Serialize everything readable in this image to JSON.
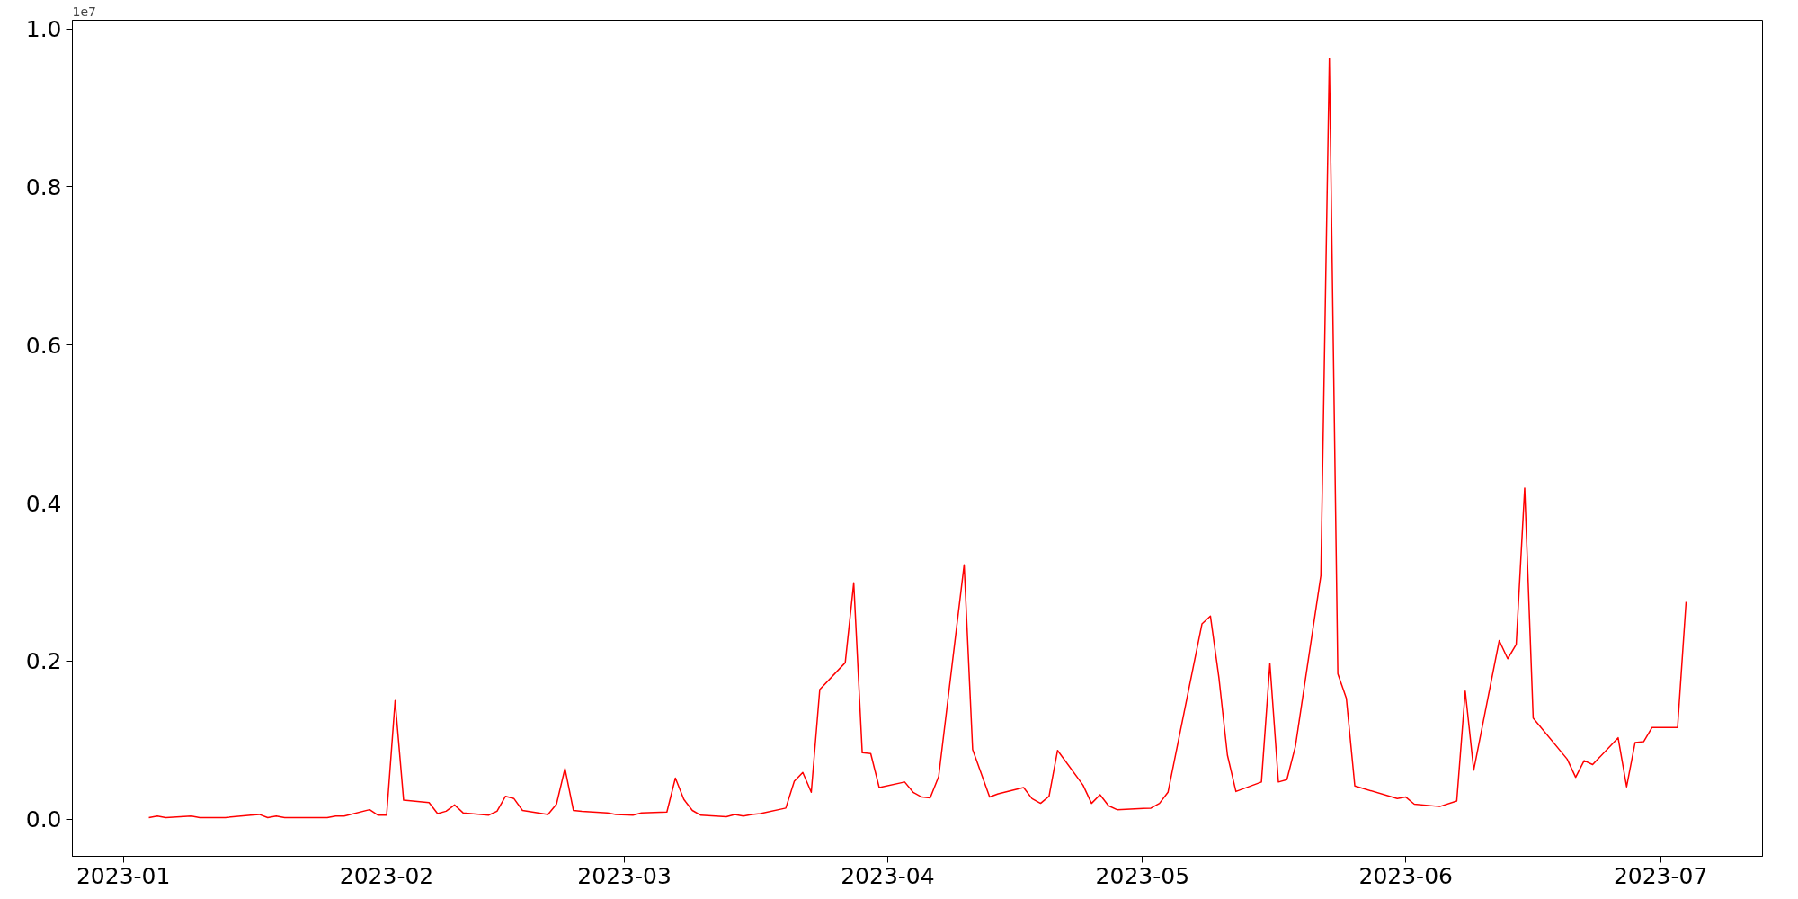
{
  "chart_data": {
    "type": "line",
    "x": [
      "2023-01-04",
      "2023-01-05",
      "2023-01-06",
      "2023-01-09",
      "2023-01-10",
      "2023-01-11",
      "2023-01-12",
      "2023-01-13",
      "2023-01-16",
      "2023-01-17",
      "2023-01-18",
      "2023-01-19",
      "2023-01-20",
      "2023-01-25",
      "2023-01-26",
      "2023-01-27",
      "2023-01-30",
      "2023-01-31",
      "2023-02-01",
      "2023-02-02",
      "2023-02-03",
      "2023-02-06",
      "2023-02-07",
      "2023-02-08",
      "2023-02-09",
      "2023-02-10",
      "2023-02-13",
      "2023-02-14",
      "2023-02-15",
      "2023-02-16",
      "2023-02-17",
      "2023-02-20",
      "2023-02-21",
      "2023-02-22",
      "2023-02-23",
      "2023-02-24",
      "2023-02-27",
      "2023-02-28",
      "2023-03-02",
      "2023-03-03",
      "2023-03-06",
      "2023-03-07",
      "2023-03-08",
      "2023-03-09",
      "2023-03-10",
      "2023-03-13",
      "2023-03-14",
      "2023-03-15",
      "2023-03-16",
      "2023-03-17",
      "2023-03-20",
      "2023-03-21",
      "2023-03-22",
      "2023-03-23",
      "2023-03-24",
      "2023-03-27",
      "2023-03-28",
      "2023-03-29",
      "2023-03-30",
      "2023-03-31",
      "2023-04-03",
      "2023-04-04",
      "2023-04-05",
      "2023-04-06",
      "2023-04-07",
      "2023-04-10",
      "2023-04-11",
      "2023-04-13",
      "2023-04-14",
      "2023-04-17",
      "2023-04-18",
      "2023-04-19",
      "2023-04-20",
      "2023-04-21",
      "2023-04-24",
      "2023-04-25",
      "2023-04-26",
      "2023-04-27",
      "2023-04-28",
      "2023-05-02",
      "2023-05-03",
      "2023-05-04",
      "2023-05-08",
      "2023-05-09",
      "2023-05-10",
      "2023-05-11",
      "2023-05-12",
      "2023-05-15",
      "2023-05-16",
      "2023-05-17",
      "2023-05-18",
      "2023-05-19",
      "2023-05-22",
      "2023-05-23",
      "2023-05-24",
      "2023-05-25",
      "2023-05-26",
      "2023-05-31",
      "2023-06-01",
      "2023-06-02",
      "2023-06-05",
      "2023-06-07",
      "2023-06-08",
      "2023-06-09",
      "2023-06-12",
      "2023-06-13",
      "2023-06-14",
      "2023-06-15",
      "2023-06-16",
      "2023-06-20",
      "2023-06-21",
      "2023-06-22",
      "2023-06-23",
      "2023-06-26",
      "2023-06-27",
      "2023-06-28",
      "2023-06-29",
      "2023-06-30",
      "2023-07-03",
      "2023-07-04"
    ],
    "series": [
      {
        "color": "#ff0000",
        "values": [
          0.002,
          0.004,
          0.002,
          0.004,
          0.002,
          0.002,
          0.002,
          0.002,
          0.005,
          0.006,
          0.002,
          0.004,
          0.002,
          0.002,
          0.004,
          0.004,
          0.012,
          0.005,
          0.005,
          0.15,
          0.024,
          0.021,
          0.007,
          0.01,
          0.018,
          0.008,
          0.005,
          0.01,
          0.029,
          0.026,
          0.011,
          0.006,
          0.019,
          0.064,
          0.011,
          0.01,
          0.008,
          0.006,
          0.005,
          0.008,
          0.009,
          0.052,
          0.025,
          0.011,
          0.005,
          0.003,
          0.006,
          0.004,
          0.006,
          0.007,
          0.014,
          0.048,
          0.059,
          0.034,
          0.164,
          0.198,
          0.299,
          0.084,
          0.083,
          0.04,
          0.047,
          0.034,
          0.028,
          0.027,
          0.054,
          0.322,
          0.088,
          0.028,
          0.032,
          0.04,
          0.026,
          0.02,
          0.029,
          0.087,
          0.043,
          0.02,
          0.031,
          0.017,
          0.012,
          0.014,
          0.02,
          0.034,
          0.247,
          0.257,
          0.179,
          0.081,
          0.035,
          0.047,
          0.197,
          0.047,
          0.05,
          0.092,
          0.308,
          0.963,
          0.184,
          0.153,
          0.042,
          0.026,
          0.028,
          0.019,
          0.016,
          0.023,
          0.162,
          0.062,
          0.226,
          0.203,
          0.221,
          0.419,
          0.128,
          0.076,
          0.053,
          0.074,
          0.069,
          0.103,
          0.041,
          0.097,
          0.098,
          0.116,
          0.116,
          0.275
        ]
      }
    ],
    "xlim": [
      "2022-12-26",
      "2023-07-13"
    ],
    "xticks": [
      "2023-01",
      "2023-02",
      "2023-03",
      "2023-04",
      "2023-05",
      "2023-06",
      "2023-07"
    ],
    "ylim": [
      -0.047,
      1.011
    ],
    "yticks": [
      {
        "value": 0,
        "label": "0.0"
      },
      0.2,
      0.4,
      0.6,
      0.8,
      {
        "value": 1,
        "label": "1.0"
      }
    ],
    "annotations": [
      "1e7"
    ],
    "grid": false,
    "marker": "none",
    "line_style": "solid"
  }
}
